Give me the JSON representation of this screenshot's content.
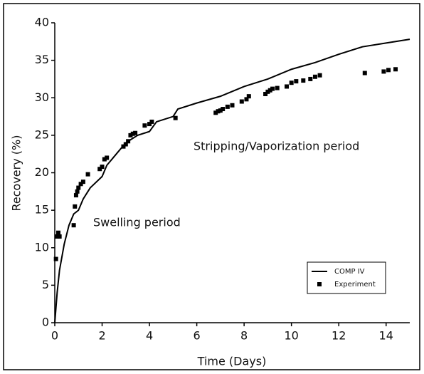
{
  "chart_data": {
    "type": "line",
    "xlabel": "Time (Days)",
    "ylabel": "Recovery (%)",
    "annotations": [
      "Swelling period",
      "Stripping/Vaporization period"
    ],
    "xlim": [
      0,
      15
    ],
    "xticks": [
      0,
      2,
      4,
      6,
      8,
      10,
      12,
      14
    ],
    "ylim": [
      0,
      40
    ],
    "yticks": [
      0,
      5,
      10,
      15,
      20,
      25,
      30,
      35,
      40
    ],
    "legend": "lower right",
    "grid": false,
    "series": [
      {
        "name": "COMP IV",
        "color": "#000000",
        "mode": "line",
        "x": [
          0,
          0.1,
          0.2,
          0.4,
          0.6,
          0.8,
          1,
          1.2,
          1.5,
          2,
          2.2,
          2.6,
          3,
          3.5,
          4,
          4.3,
          5,
          5.2,
          6,
          7,
          8,
          9,
          10,
          11,
          12,
          13,
          14,
          15
        ],
        "values": [
          0,
          4,
          7,
          10.5,
          13,
          14.5,
          15,
          16.5,
          18,
          19.5,
          21,
          22.5,
          24,
          25,
          25.5,
          26.8,
          27.5,
          28.5,
          29.3,
          30.2,
          31.5,
          32.5,
          33.8,
          34.7,
          35.8,
          36.8,
          37.3,
          37.8
        ]
      },
      {
        "name": "Experiment",
        "color": "#000000",
        "mode": "markers",
        "x": [
          0.05,
          0.1,
          0.15,
          0.2,
          0.8,
          0.85,
          0.9,
          0.95,
          1,
          1.1,
          1.2,
          1.4,
          1.9,
          2,
          2.1,
          2.2,
          2.9,
          3,
          3.1,
          3.2,
          3.3,
          3.4,
          3.8,
          4,
          4.1,
          5.1,
          6.8,
          6.9,
          7,
          7.1,
          7.3,
          7.5,
          7.9,
          8.1,
          8.2,
          8.9,
          9,
          9.1,
          9.2,
          9.4,
          9.8,
          10,
          10.2,
          10.5,
          10.8,
          11,
          11.2,
          13.1,
          13.9,
          14.1,
          14.4
        ],
        "values": [
          8.5,
          11.5,
          12,
          11.5,
          13,
          15.5,
          17,
          17.5,
          18,
          18.5,
          18.8,
          19.8,
          20.5,
          20.8,
          21.8,
          22,
          23.5,
          23.8,
          24.2,
          25,
          25.2,
          25.3,
          26.3,
          26.5,
          26.8,
          27.3,
          28,
          28.2,
          28.3,
          28.5,
          28.8,
          29,
          29.5,
          29.8,
          30.2,
          30.5,
          30.8,
          31,
          31.2,
          31.3,
          31.5,
          32,
          32.2,
          32.3,
          32.5,
          32.8,
          33,
          33.3,
          33.5,
          33.7,
          33.8
        ]
      }
    ]
  }
}
